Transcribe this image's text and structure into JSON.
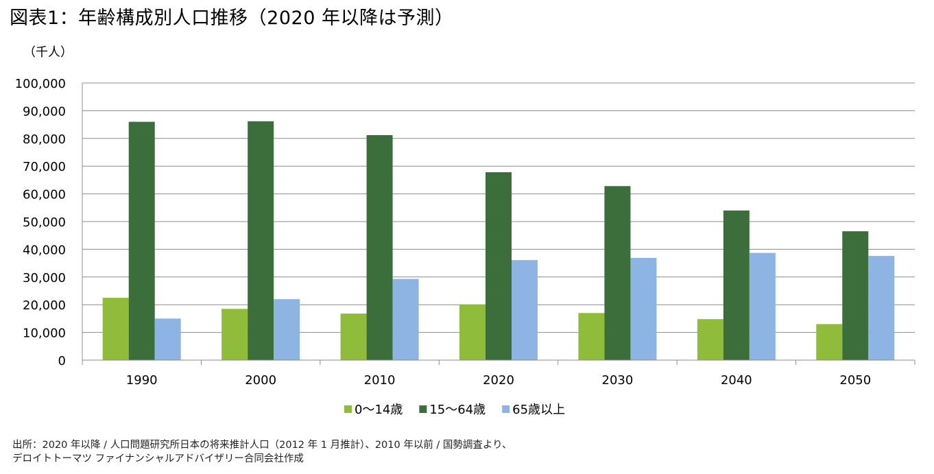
{
  "title": "図表1：年齢構成別人口推移（2020 年以降は予測）",
  "unit_label": "（千人）",
  "source_lines": [
    "出所：2020 年以降 / 人口問題研究所日本の将来推計人口（2012 年 1 月推計）、2010 年以前 / 国勢調査より、",
    "デロイトトーマツ ファイナンシャルアドバイザリー合同会社作成"
  ],
  "chart_data": {
    "type": "bar",
    "categories": [
      "1990",
      "2000",
      "2010",
      "2020",
      "2030",
      "2040",
      "2050"
    ],
    "series": [
      {
        "name": "0〜14歳",
        "color": "#8fbc3a",
        "values": [
          22500,
          18500,
          16800,
          20000,
          17000,
          14800,
          13000
        ]
      },
      {
        "name": "15〜64歳",
        "color": "#3b6e3a",
        "values": [
          86000,
          86200,
          81200,
          67800,
          62800,
          54000,
          46500
        ]
      },
      {
        "name": "65歳以上",
        "color": "#8db4e2",
        "values": [
          15000,
          22000,
          29300,
          36100,
          36900,
          38700,
          37600
        ]
      }
    ],
    "ylim": [
      0,
      100000
    ],
    "yticks": [
      "0",
      "10,000",
      "20,000",
      "30,000",
      "40,000",
      "50,000",
      "60,000",
      "70,000",
      "80,000",
      "90,000",
      "100,000"
    ],
    "grid": true,
    "legend_position": "bottom"
  }
}
